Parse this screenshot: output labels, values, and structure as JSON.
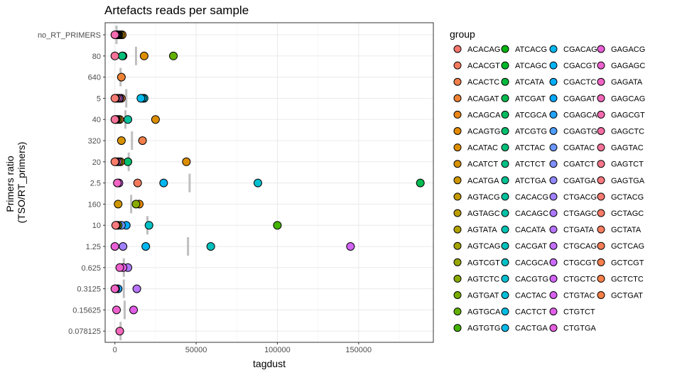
{
  "chart_data": {
    "type": "scatter",
    "title": "Artefacts reads per sample",
    "xlabel": "tagdust",
    "ylabel": [
      "Primers ratio",
      "(TSO/RT_primers)"
    ],
    "xlim": [
      -6000,
      196000
    ],
    "xticks": [
      0,
      50000,
      100000,
      150000
    ],
    "xtick_labels": [
      "0",
      "50000",
      "100000",
      "150000"
    ],
    "grid": true,
    "legend_position": "right",
    "legend_title": "group",
    "categories": [
      "no_RT_PRIMERS",
      "80",
      "640",
      "5",
      "40",
      "320",
      "20",
      "2.5",
      "160",
      "10",
      "1.25",
      "0.625",
      "0.3125",
      "0.15625",
      "0.078125"
    ],
    "groups": [
      "ACACAG",
      "ACACGT",
      "ACACTC",
      "ACAGAT",
      "ACAGCA",
      "ACAGTG",
      "ACATAC",
      "ACATCT",
      "ACATGA",
      "AGTACG",
      "AGTAGC",
      "AGTATA",
      "AGTCAG",
      "AGTCGT",
      "AGTCTC",
      "AGTGAT",
      "AGTGCA",
      "AGTGTG",
      "ATCACG",
      "ATCAGC",
      "ATCATA",
      "ATCGAT",
      "ATCGCA",
      "ATCGTG",
      "ATCTAC",
      "ATCTCT",
      "ATCTGA",
      "CACACG",
      "CACAGC",
      "CACATA",
      "CACGAT",
      "CACGCA",
      "CACGTG",
      "CACTAC",
      "CACTCT",
      "CACTGA",
      "CGACAG",
      "CGACGT",
      "CGACTC",
      "CGAGAT",
      "CGAGCA",
      "CGAGTG",
      "CGATAC",
      "CGATCT",
      "CGATGA",
      "CTGACG",
      "CTGAGC",
      "CTGATA",
      "CTGCAG",
      "CTGCGT",
      "CTGCTC",
      "CTGTAC",
      "CTGTCT",
      "CTGTGA",
      "GAGACG",
      "GAGAGC",
      "GAGATA",
      "GAGCAG",
      "GAGCGT",
      "GAGCTC",
      "GAGTAC",
      "GAGTCT",
      "GAGTGA",
      "GCTACG",
      "GCTAGC",
      "GCTATA",
      "GCTCAG",
      "GCTCGT",
      "GCTCTC",
      "GCTGAT"
    ],
    "group_colors": [
      "#F8766D",
      "#F57A5C",
      "#F17E4A",
      "#EE8234",
      "#EA8618",
      "#E48A00",
      "#DD8E00",
      "#D69200",
      "#CD9600",
      "#C49A00",
      "#BB9D00",
      "#B0A100",
      "#A4A400",
      "#97A700",
      "#88AA00",
      "#77AD00",
      "#61B000",
      "#44B300",
      "#00B50E",
      "#00B72A",
      "#00B93E",
      "#00BB4F",
      "#00BC5E",
      "#00BE6C",
      "#00BF79",
      "#00C085",
      "#00C191",
      "#00C19C",
      "#00C2A7",
      "#00C2B2",
      "#00C1BC",
      "#00C1C6",
      "#00C0D0",
      "#00BED9",
      "#00BCE2",
      "#00BAEA",
      "#00B7F1",
      "#00B3F7",
      "#00AEFC",
      "#00A9FF",
      "#22A3FF",
      "#4D9DFF",
      "#6996FF",
      "#7F8FFF",
      "#9188FF",
      "#A081FF",
      "#AD7AFF",
      "#B874FF",
      "#C26EFF",
      "#CB69FA",
      "#D264F5",
      "#D760EF",
      "#E05EE7",
      "#E55EDF",
      "#E95FD6",
      "#EC61CD",
      "#EF64C4",
      "#F167BA",
      "#F36AAF",
      "#F46EA4",
      "#F67298",
      "#F7768B",
      "#F8797E",
      "#F87B72",
      "#F87C68",
      "#F87D5F",
      "#F87E56",
      "#F87F4E",
      "#F8804A",
      "#F88046"
    ],
    "medians": [
      1000,
      13000,
      3500,
      7000,
      6500,
      10500,
      8500,
      46000,
      10000,
      20000,
      45000,
      5500,
      5500,
      6000,
      3500
    ],
    "points": [
      {
        "cat": "no_RT_PRIMERS",
        "values": [
          {
            "x": 4500,
            "g": 5
          },
          {
            "x": 3500,
            "g": 9
          },
          {
            "x": 2500,
            "g": 13
          },
          {
            "x": 2000,
            "g": 17
          },
          {
            "x": 1500,
            "g": 46
          },
          {
            "x": 1000,
            "g": 49
          },
          {
            "x": 500,
            "g": 55
          },
          {
            "x": 0,
            "g": 58
          }
        ]
      },
      {
        "cat": "80",
        "values": [
          {
            "x": 36000,
            "g": 16
          },
          {
            "x": 18000,
            "g": 6
          },
          {
            "x": 5000,
            "g": 19
          },
          {
            "x": 4500,
            "g": 24
          },
          {
            "x": 0,
            "g": 60
          }
        ]
      },
      {
        "cat": "640",
        "values": [
          {
            "x": 4000,
            "g": 3
          }
        ]
      },
      {
        "cat": "5",
        "values": [
          {
            "x": 18000,
            "g": 30
          },
          {
            "x": 17000,
            "g": 37
          },
          {
            "x": 16000,
            "g": 35
          },
          {
            "x": 4000,
            "g": 3
          },
          {
            "x": 3000,
            "g": 41
          },
          {
            "x": 2500,
            "g": 49
          },
          {
            "x": 1500,
            "g": 58
          },
          {
            "x": 500,
            "g": 33
          },
          {
            "x": 0,
            "g": 63
          }
        ]
      },
      {
        "cat": "40",
        "values": [
          {
            "x": 25000,
            "g": 6
          },
          {
            "x": 8000,
            "g": 27
          },
          {
            "x": 3000,
            "g": 2
          },
          {
            "x": 2000,
            "g": 11
          },
          {
            "x": 1000,
            "g": 14
          },
          {
            "x": 500,
            "g": 55
          },
          {
            "x": 0,
            "g": 60
          }
        ]
      },
      {
        "cat": "320",
        "values": [
          {
            "x": 17000,
            "g": 2
          },
          {
            "x": 4000,
            "g": 7
          }
        ]
      },
      {
        "cat": "20",
        "values": [
          {
            "x": 44000,
            "g": 6
          },
          {
            "x": 8000,
            "g": 23
          },
          {
            "x": 3500,
            "g": 4
          },
          {
            "x": 2500,
            "g": 12
          },
          {
            "x": 1500,
            "g": 51
          },
          {
            "x": 500,
            "g": 58
          },
          {
            "x": 0,
            "g": 64
          }
        ]
      },
      {
        "cat": "2.5",
        "values": [
          {
            "x": 188000,
            "g": 21
          },
          {
            "x": 88000,
            "g": 32
          },
          {
            "x": 30000,
            "g": 36
          },
          {
            "x": 14000,
            "g": 1
          },
          {
            "x": 2500,
            "g": 50
          },
          {
            "x": 1500,
            "g": 56
          }
        ]
      },
      {
        "cat": "160",
        "values": [
          {
            "x": 15000,
            "g": 5
          },
          {
            "x": 13000,
            "g": 14
          },
          {
            "x": 2000,
            "g": 8
          }
        ]
      },
      {
        "cat": "10",
        "values": [
          {
            "x": 100000,
            "g": 17
          },
          {
            "x": 21000,
            "g": 31
          },
          {
            "x": 7000,
            "g": 38
          },
          {
            "x": 4000,
            "g": 42
          },
          {
            "x": 2000,
            "g": 15
          },
          {
            "x": 1000,
            "g": 10
          },
          {
            "x": 500,
            "g": 62
          }
        ]
      },
      {
        "cat": "1.25",
        "values": [
          {
            "x": 145000,
            "g": 50
          },
          {
            "x": 59000,
            "g": 30
          },
          {
            "x": 19000,
            "g": 36
          },
          {
            "x": 5000,
            "g": 45
          },
          {
            "x": 0,
            "g": 54
          }
        ]
      },
      {
        "cat": "0.625",
        "values": [
          {
            "x": 8000,
            "g": 46
          },
          {
            "x": 5000,
            "g": 52
          },
          {
            "x": 3000,
            "g": 55
          }
        ]
      },
      {
        "cat": "0.3125",
        "values": [
          {
            "x": 13500,
            "g": 47
          },
          {
            "x": 2000,
            "g": 40
          },
          {
            "x": 500,
            "g": 51
          },
          {
            "x": 0,
            "g": 56
          }
        ]
      },
      {
        "cat": "0.15625",
        "values": [
          {
            "x": 11500,
            "g": 52
          },
          {
            "x": 1000,
            "g": 55
          }
        ]
      },
      {
        "cat": "0.078125",
        "values": [
          {
            "x": 3000,
            "g": 57
          }
        ]
      }
    ]
  }
}
